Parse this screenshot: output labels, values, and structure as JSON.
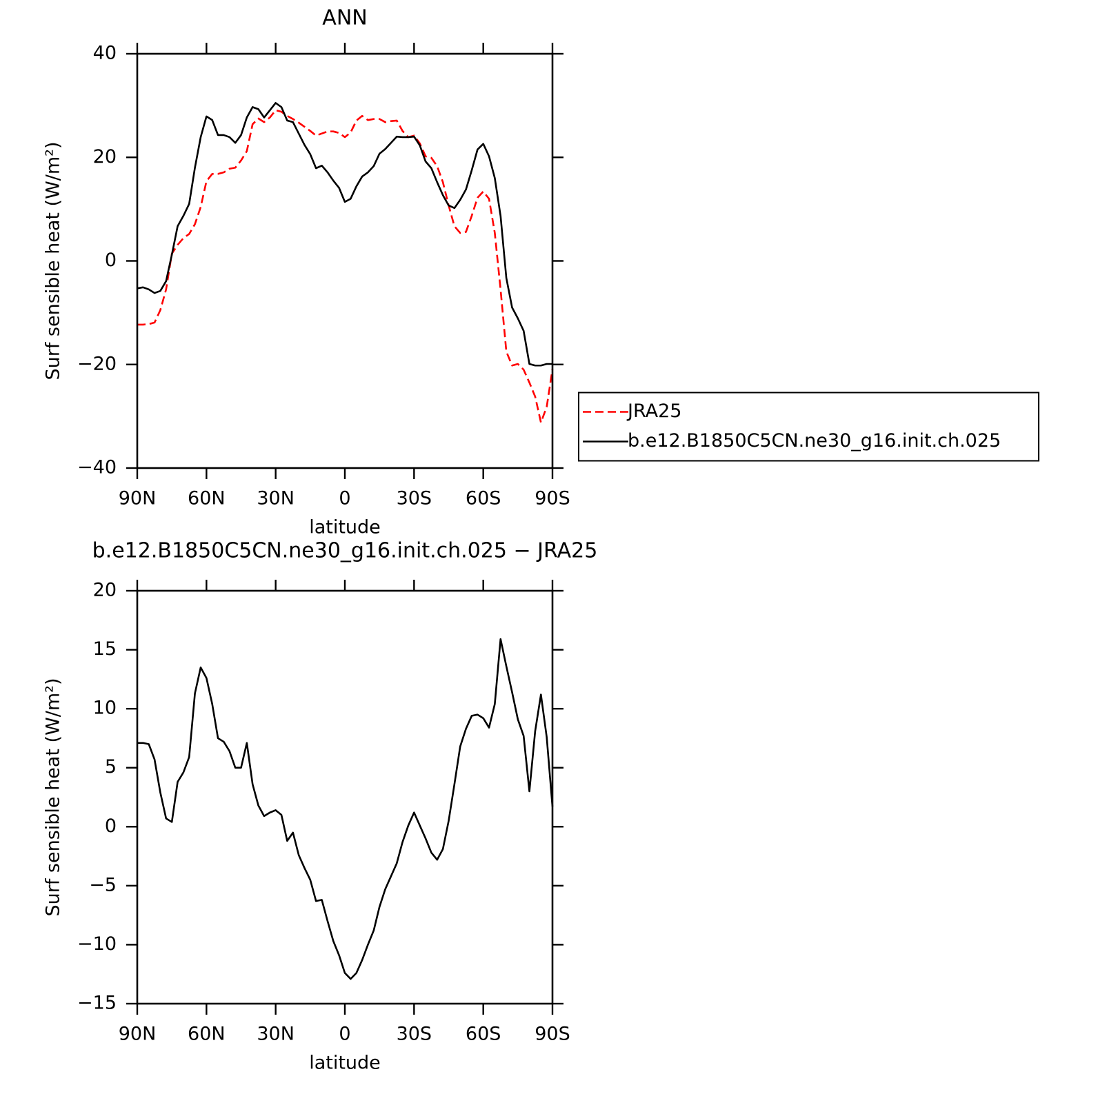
{
  "chart_data": [
    {
      "type": "line",
      "title": "ANN",
      "x_label": "latitude",
      "y_label": "Surf sensible heat (W/m²)",
      "x": [
        90,
        87.5,
        85,
        82.5,
        80,
        77.5,
        75,
        72.5,
        70,
        67.5,
        65,
        62.5,
        60,
        57.5,
        55,
        52.5,
        50,
        47.5,
        45,
        42.5,
        40,
        37.5,
        35,
        32.5,
        30,
        27.5,
        25,
        22.5,
        20,
        17.5,
        15,
        12.5,
        10,
        7.5,
        5,
        2.5,
        0,
        -2.5,
        -5,
        -7.5,
        -10,
        -12.5,
        -15,
        -17.5,
        -20,
        -22.5,
        -25,
        -27.5,
        -30,
        -32.5,
        -35,
        -37.5,
        -40,
        -42.5,
        -45,
        -47.5,
        -50,
        -52.5,
        -55,
        -57.5,
        -60,
        -62.5,
        -65,
        -67.5,
        -70,
        -72.5,
        -75,
        -77.5,
        -80,
        -82.5,
        -85,
        -87.5,
        -90
      ],
      "series": [
        {
          "name": "JRA25",
          "color": "#ff0000",
          "style": "dashed",
          "values": [
            -12.3,
            -12.3,
            -12.2,
            -11.9,
            -9.5,
            -5.5,
            1.4,
            3.1,
            4.4,
            5.2,
            7.1,
            10.4,
            15.4,
            16.8,
            16.8,
            17.1,
            17.8,
            18.0,
            19.4,
            21.2,
            26.4,
            27.5,
            26.8,
            27.7,
            29.1,
            28.8,
            28.0,
            27.4,
            26.7,
            25.9,
            25.1,
            24.2,
            24.6,
            25.0,
            25.0,
            24.7,
            23.9,
            24.8,
            27.1,
            28.0,
            27.2,
            27.4,
            27.4,
            26.8,
            27.0,
            27.1,
            25.1,
            23.9,
            24.2,
            22.7,
            20.2,
            19.9,
            18.3,
            15.2,
            10.7,
            6.7,
            5.4,
            5.6,
            8.7,
            12.2,
            13.4,
            12.0,
            5.4,
            -5.5,
            -17.5,
            -20.2,
            -19.9,
            -21.0,
            -23.5,
            -26.2,
            -31.2,
            -28.2,
            -20.9
          ]
        },
        {
          "name": "b.e12.B1850C5CN.ne30_g16.init.ch.025",
          "color": "#000000",
          "style": "solid",
          "values": [
            -5.3,
            -5.1,
            -5.5,
            -6.2,
            -5.8,
            -3.9,
            1.2,
            6.7,
            8.7,
            11.0,
            18.0,
            23.9,
            27.9,
            27.2,
            24.3,
            24.3,
            23.9,
            22.8,
            24.3,
            27.7,
            29.7,
            29.3,
            27.7,
            29.1,
            30.5,
            29.7,
            27.1,
            26.8,
            24.6,
            22.4,
            20.6,
            17.9,
            18.4,
            17.1,
            15.5,
            14.1,
            11.4,
            12.0,
            14.4,
            16.3,
            17.1,
            18.3,
            20.7,
            21.6,
            22.8,
            24.0,
            23.9,
            23.9,
            24.0,
            22.3,
            19.2,
            17.9,
            15.2,
            12.7,
            10.7,
            10.2,
            11.8,
            13.8,
            17.5,
            21.5,
            22.6,
            20.2,
            16.0,
            8.7,
            -3.3,
            -9.0,
            -11.1,
            -13.5,
            -19.9,
            -20.2,
            -20.2,
            -19.9,
            -19.9
          ]
        }
      ],
      "xlim": [
        90,
        -90
      ],
      "xticks": [
        {
          "value": 90,
          "label": "90N"
        },
        {
          "value": 60,
          "label": "60N"
        },
        {
          "value": 30,
          "label": "30N"
        },
        0,
        {
          "value": -30,
          "label": "30S"
        },
        {
          "value": -60,
          "label": "60S"
        },
        {
          "value": -90,
          "label": "90S"
        }
      ],
      "ylim": [
        -40,
        40
      ],
      "yticks": [
        {
          "value": -40,
          "label": "−40"
        },
        {
          "value": -20,
          "label": "−20"
        },
        0,
        20,
        40
      ],
      "legend": "outside-right"
    },
    {
      "type": "line",
      "title": "b.e12.B1850C5CN.ne30_g16.init.ch.025 − JRA25",
      "x_label": "latitude",
      "y_label": "Surf sensible heat (W/m²)",
      "x": [
        90,
        87.5,
        85,
        82.5,
        80,
        77.5,
        75,
        72.5,
        70,
        67.5,
        65,
        62.5,
        60,
        57.5,
        55,
        52.5,
        50,
        47.5,
        45,
        42.5,
        40,
        37.5,
        35,
        32.5,
        30,
        27.5,
        25,
        22.5,
        20,
        17.5,
        15,
        12.5,
        10,
        7.5,
        5,
        2.5,
        0,
        -2.5,
        -5,
        -7.5,
        -10,
        -12.5,
        -15,
        -17.5,
        -20,
        -22.5,
        -25,
        -27.5,
        -30,
        -32.5,
        -35,
        -37.5,
        -40,
        -42.5,
        -45,
        -47.5,
        -50,
        -52.5,
        -55,
        -57.5,
        -60,
        -62.5,
        -65,
        -67.5,
        -70,
        -72.5,
        -75,
        -77.5,
        -80,
        -82.5,
        -85,
        -87.5,
        -90
      ],
      "color": "#000000",
      "values": [
        7.1,
        7.1,
        7.0,
        5.7,
        2.9,
        0.7,
        0.4,
        3.8,
        4.6,
        5.9,
        11.3,
        13.5,
        12.6,
        10.4,
        7.5,
        7.2,
        6.4,
        5.0,
        5.0,
        7.1,
        3.6,
        1.8,
        0.9,
        1.2,
        1.4,
        1.0,
        -1.2,
        -0.5,
        -2.4,
        -3.5,
        -4.5,
        -6.3,
        -6.2,
        -8.0,
        -9.7,
        -10.9,
        -12.4,
        -12.9,
        -12.4,
        -11.3,
        -10.0,
        -8.8,
        -6.8,
        -5.3,
        -4.2,
        -3.1,
        -1.3,
        0.1,
        1.2,
        0.1,
        -1.0,
        -2.2,
        -2.8,
        -1.9,
        0.5,
        3.6,
        6.8,
        8.3,
        9.4,
        9.5,
        9.2,
        8.4,
        10.4,
        15.9,
        13.6,
        11.4,
        9.1,
        7.7,
        3.0,
        8.1,
        11.2,
        7.6,
        1.7
      ],
      "xlim": [
        90,
        -90
      ],
      "xticks": [
        {
          "value": 90,
          "label": "90N"
        },
        {
          "value": 60,
          "label": "60N"
        },
        {
          "value": 30,
          "label": "30N"
        },
        0,
        {
          "value": -30,
          "label": "30S"
        },
        {
          "value": -60,
          "label": "60S"
        },
        {
          "value": -90,
          "label": "90S"
        }
      ],
      "ylim": [
        -15,
        20
      ],
      "yticks": [
        {
          "value": -15,
          "label": "−15"
        },
        {
          "value": -10,
          "label": "−10"
        },
        {
          "value": -5,
          "label": "−5"
        },
        0,
        5,
        10,
        15,
        20
      ]
    }
  ]
}
